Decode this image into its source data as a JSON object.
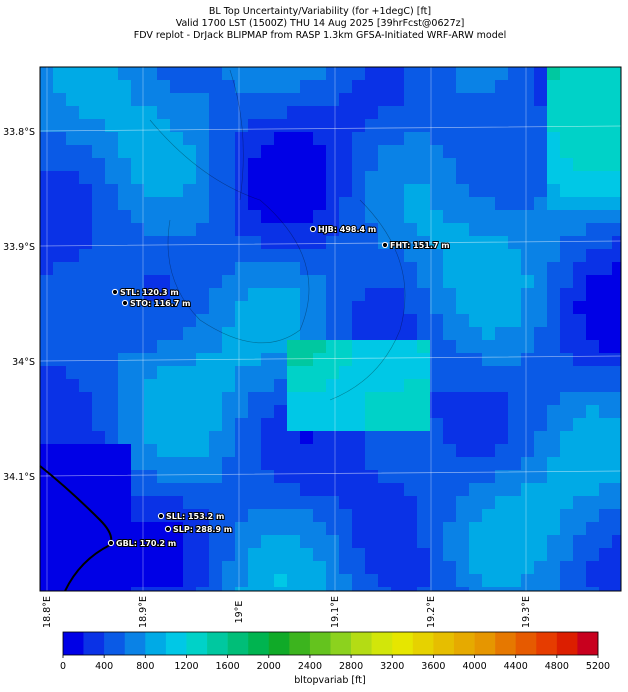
{
  "header": {
    "title_lines": [
      "BL Top Uncertainty/Variability (for +1degC) [ft]",
      "Valid 1700 LST (1500Z) THU 14 Aug 2025 [39hrFcst@0627z]",
      "FDV replot - DrJack BLIPMAP from RASP 1.3km GFSA-Initiated WRF-ARW model"
    ]
  },
  "map": {
    "lat_labels": [
      "33.8°S",
      "33.9°S",
      "34°S",
      "34.1°S"
    ],
    "lon_labels": [
      "18.8°E",
      "18.9°E",
      "19°E",
      "19.1°E",
      "19.2°E",
      "19.3°E"
    ],
    "stations": [
      {
        "label": "HJB: 498.4 m"
      },
      {
        "label": "FHT: 151.7 m"
      },
      {
        "label": "STL: 120.3 m"
      },
      {
        "label": "STO: 116.7 m"
      },
      {
        "label": "SLL: 153.2 m"
      },
      {
        "label": "SLP: 288.9 m"
      },
      {
        "label": "GBL: 170.2 m"
      }
    ]
  },
  "colorbar": {
    "ticks": [
      0,
      400,
      800,
      1200,
      1600,
      2000,
      2400,
      2800,
      3200,
      3600,
      4000,
      4400,
      4800,
      5200
    ],
    "colors": [
      "#0000e6",
      "#0a32e6",
      "#0a5ae6",
      "#0a82e6",
      "#00aae6",
      "#00c8e6",
      "#00d2c8",
      "#00c8a0",
      "#00be78",
      "#00b450",
      "#10aa28",
      "#3cb41e",
      "#64c31e",
      "#8cd21e",
      "#b4dc14",
      "#d2e60a",
      "#e6e600",
      "#e6d200",
      "#e6be00",
      "#e6aa00",
      "#e69600",
      "#e67800",
      "#e65a00",
      "#e63c00",
      "#dc1e00",
      "#c8001e"
    ],
    "label": "bltopvariab [ft]"
  }
}
